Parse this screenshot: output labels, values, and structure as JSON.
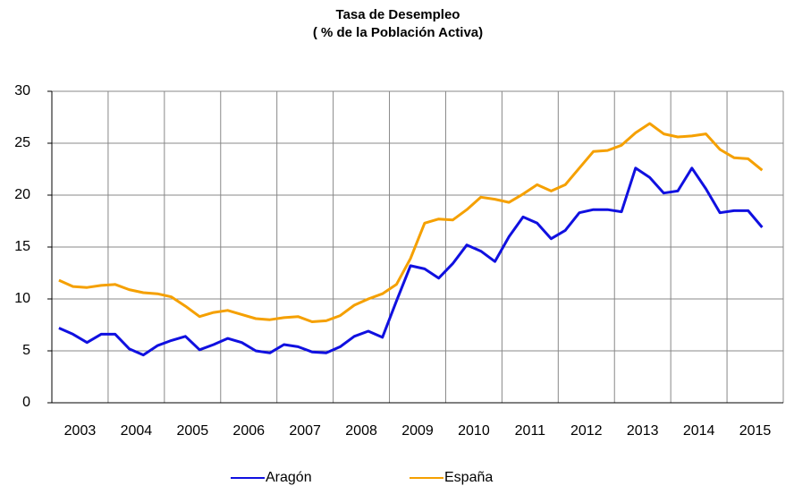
{
  "chart_data": {
    "type": "line",
    "title": "Tasa de Desempleo",
    "subtitle": "( % de la Población Activa)",
    "categories": [
      "2003",
      null,
      null,
      null,
      "2004",
      null,
      null,
      null,
      "2005",
      null,
      null,
      null,
      "2006",
      null,
      null,
      null,
      "2007",
      null,
      null,
      null,
      "2008",
      null,
      null,
      null,
      "2009",
      null,
      null,
      null,
      "2010",
      null,
      null,
      null,
      "2011",
      null,
      null,
      null,
      "2012",
      null,
      null,
      null,
      "2013",
      null,
      null,
      null,
      "2014",
      null,
      null,
      null,
      "2015",
      null,
      null,
      null
    ],
    "series": [
      {
        "name": "Aragón",
        "color": "#1010e0",
        "values": [
          7.2,
          6.6,
          5.8,
          6.6,
          6.6,
          5.2,
          4.6,
          5.5,
          6.0,
          6.4,
          5.1,
          5.6,
          6.2,
          5.8,
          5.0,
          4.8,
          5.6,
          5.4,
          4.9,
          4.8,
          5.4,
          6.4,
          6.9,
          6.3,
          9.8,
          13.2,
          12.9,
          12.0,
          13.4,
          15.2,
          14.6,
          13.6,
          16.0,
          17.9,
          17.3,
          15.8,
          16.6,
          18.3,
          18.6,
          18.6,
          18.4,
          22.6,
          21.7,
          20.2,
          20.4,
          22.6,
          20.6,
          18.3,
          18.5,
          18.5,
          16.9,
          null
        ]
      },
      {
        "name": "España",
        "color": "#f5a000",
        "values": [
          11.8,
          11.2,
          11.1,
          11.3,
          11.4,
          10.9,
          10.6,
          10.5,
          10.2,
          9.3,
          8.3,
          8.7,
          8.9,
          8.5,
          8.1,
          8.0,
          8.2,
          8.3,
          7.8,
          7.9,
          8.4,
          9.4,
          10.0,
          10.5,
          11.4,
          13.9,
          17.3,
          17.7,
          17.6,
          18.6,
          19.8,
          19.6,
          19.3,
          20.1,
          21.0,
          20.4,
          21.0,
          22.6,
          24.2,
          24.3,
          24.8,
          26.0,
          26.9,
          25.9,
          25.6,
          25.7,
          25.9,
          24.4,
          23.6,
          23.5,
          22.4,
          null
        ]
      }
    ],
    "ylim": [
      0,
      30
    ],
    "yticks": [
      0,
      5,
      10,
      15,
      20,
      25,
      30
    ],
    "grid": true,
    "legend": "bottom"
  }
}
